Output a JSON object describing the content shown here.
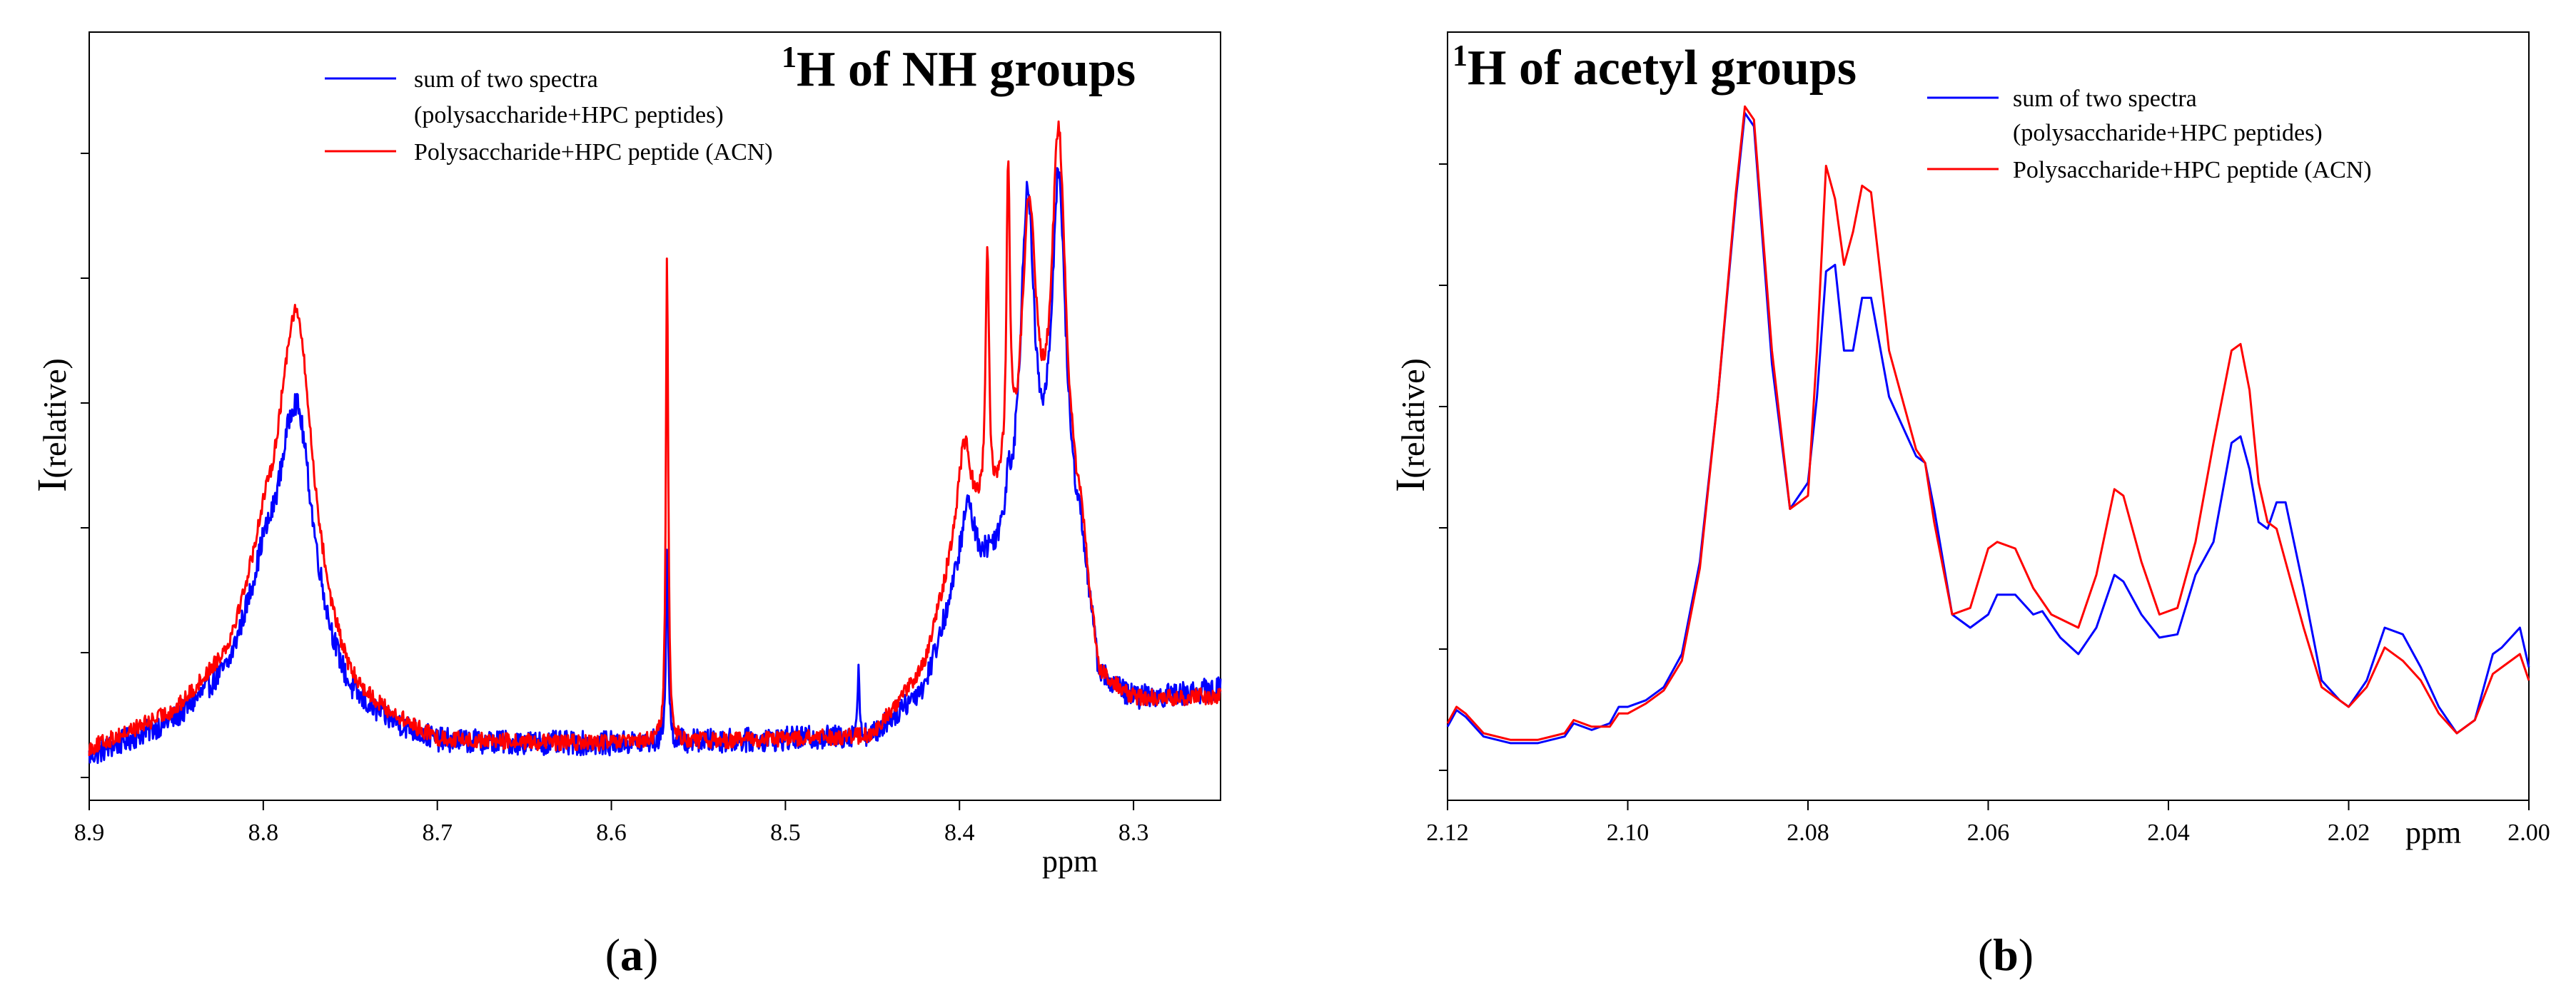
{
  "chart_data": [
    {
      "type": "line",
      "panel_label": "a",
      "title_superscript": "1",
      "title": "H of NH groups",
      "xlabel": "ppm",
      "ylabel_main": "I",
      "ylabel_sub": "(relative)",
      "xlim": [
        8.9,
        8.25
      ],
      "ylim": [
        0,
        1.0
      ],
      "x_ticks": [
        8.9,
        8.8,
        8.7,
        8.6,
        8.5,
        8.4,
        8.3
      ],
      "x_tick_labels": [
        "8.9",
        "8.8",
        "8.7",
        "8.6",
        "8.5",
        "8.4",
        "8.3"
      ],
      "legend": {
        "position": "top-center",
        "entries": [
          {
            "line1": "sum of two spectra",
            "line2": "(polysaccharide+HPC peptides)",
            "color": "#0000ff"
          },
          {
            "line1": "Polysaccharide+HPC peptide (ACN)",
            "line2": "",
            "color": "#ff0000"
          }
        ]
      },
      "series": [
        {
          "name": "sum of two spectra (polysaccharide+HPC peptides)",
          "color": "#0000ff",
          "noise": 0.018,
          "baseline": [
            [
              8.9,
              0.02
            ],
            [
              8.85,
              0.07
            ],
            [
              8.82,
              0.13
            ],
            [
              8.8,
              0.25
            ],
            [
              8.75,
              0.08
            ],
            [
              8.7,
              0.04
            ],
            [
              8.6,
              0.04
            ],
            [
              8.45,
              0.05
            ],
            [
              8.42,
              0.12
            ],
            [
              8.4,
              0.28
            ],
            [
              8.37,
              0.3
            ],
            [
              8.33,
              0.3
            ],
            [
              8.32,
              0.12
            ],
            [
              8.3,
              0.1
            ],
            [
              8.25,
              0.12
            ]
          ],
          "peaks": [
            {
              "x": 8.781,
              "height": 0.36,
              "width": 0.012
            },
            {
              "x": 8.568,
              "height": 0.28,
              "width": 0.0008
            },
            {
              "x": 8.458,
              "height": 0.09,
              "width": 0.0008
            },
            {
              "x": 8.395,
              "height": 0.1,
              "width": 0.004
            },
            {
              "x": 8.372,
              "height": 0.06,
              "width": 0.0015
            },
            {
              "x": 8.361,
              "height": 0.52,
              "width": 0.005
            },
            {
              "x": 8.343,
              "height": 0.55,
              "width": 0.005
            }
          ]
        },
        {
          "name": "Polysaccharide+HPC peptide (ACN)",
          "color": "#ff0000",
          "noise": 0.012,
          "baseline": [
            [
              8.9,
              0.03
            ],
            [
              8.85,
              0.08
            ],
            [
              8.82,
              0.15
            ],
            [
              8.8,
              0.27
            ],
            [
              8.75,
              0.09
            ],
            [
              8.7,
              0.04
            ],
            [
              8.6,
              0.04
            ],
            [
              8.45,
              0.05
            ],
            [
              8.42,
              0.15
            ],
            [
              8.4,
              0.35
            ],
            [
              8.37,
              0.37
            ],
            [
              8.33,
              0.32
            ],
            [
              8.32,
              0.12
            ],
            [
              8.3,
              0.1
            ],
            [
              8.25,
              0.11
            ]
          ],
          "peaks": [
            {
              "x": 8.781,
              "height": 0.48,
              "width": 0.012
            },
            {
              "x": 8.568,
              "height": 0.72,
              "width": 0.0008
            },
            {
              "x": 8.397,
              "height": 0.12,
              "width": 0.004
            },
            {
              "x": 8.384,
              "height": 0.38,
              "width": 0.0012
            },
            {
              "x": 8.372,
              "height": 0.45,
              "width": 0.0012
            },
            {
              "x": 8.36,
              "height": 0.45,
              "width": 0.005
            },
            {
              "x": 8.343,
              "height": 0.58,
              "width": 0.005
            }
          ]
        }
      ]
    },
    {
      "type": "line",
      "panel_label": "b",
      "title_superscript": "1",
      "title": "H of acetyl groups",
      "xlabel": "ppm",
      "ylabel_main": "I",
      "ylabel_sub": "(relative)",
      "xlim": [
        2.12,
        2.0
      ],
      "ylim": [
        0,
        1.0
      ],
      "x_ticks": [
        2.12,
        2.1,
        2.08,
        2.06,
        2.04,
        2.02,
        2.0
      ],
      "x_tick_labels": [
        "2.12",
        "2.10",
        "2.08",
        "2.06",
        "2.04",
        "2.02",
        "2.00"
      ],
      "legend": {
        "position": "top-right",
        "entries": [
          {
            "line1": "sum of two spectra",
            "line2": "(polysaccharide+HPC peptides)",
            "color": "#0000ff"
          },
          {
            "line1": "Polysaccharide+HPC peptide (ACN)",
            "line2": "",
            "color": "#ff0000"
          }
        ]
      },
      "series": [
        {
          "name": "sum of two spectra (polysaccharide+HPC peptides)",
          "color": "#0000ff",
          "points": [
            [
              2.12,
              0.05
            ],
            [
              2.119,
              0.075
            ],
            [
              2.118,
              0.065
            ],
            [
              2.116,
              0.035
            ],
            [
              2.113,
              0.025
            ],
            [
              2.11,
              0.025
            ],
            [
              2.107,
              0.035
            ],
            [
              2.106,
              0.055
            ],
            [
              2.104,
              0.045
            ],
            [
              2.102,
              0.055
            ],
            [
              2.101,
              0.08
            ],
            [
              2.1,
              0.08
            ],
            [
              2.098,
              0.09
            ],
            [
              2.096,
              0.11
            ],
            [
              2.094,
              0.16
            ],
            [
              2.092,
              0.3
            ],
            [
              2.09,
              0.55
            ],
            [
              2.088,
              0.85
            ],
            [
              2.087,
              0.98
            ],
            [
              2.086,
              0.96
            ],
            [
              2.084,
              0.6
            ],
            [
              2.082,
              0.38
            ],
            [
              2.08,
              0.42
            ],
            [
              2.079,
              0.55
            ],
            [
              2.078,
              0.74
            ],
            [
              2.077,
              0.75
            ],
            [
              2.076,
              0.62
            ],
            [
              2.075,
              0.62
            ],
            [
              2.074,
              0.7
            ],
            [
              2.073,
              0.7
            ],
            [
              2.071,
              0.55
            ],
            [
              2.068,
              0.46
            ],
            [
              2.067,
              0.45
            ],
            [
              2.066,
              0.38
            ],
            [
              2.064,
              0.22
            ],
            [
              2.062,
              0.2
            ],
            [
              2.06,
              0.22
            ],
            [
              2.059,
              0.25
            ],
            [
              2.057,
              0.25
            ],
            [
              2.055,
              0.22
            ],
            [
              2.054,
              0.225
            ],
            [
              2.052,
              0.185
            ],
            [
              2.05,
              0.16
            ],
            [
              2.048,
              0.2
            ],
            [
              2.046,
              0.28
            ],
            [
              2.045,
              0.27
            ],
            [
              2.043,
              0.22
            ],
            [
              2.041,
              0.185
            ],
            [
              2.039,
              0.19
            ],
            [
              2.037,
              0.28
            ],
            [
              2.035,
              0.33
            ],
            [
              2.033,
              0.48
            ],
            [
              2.032,
              0.49
            ],
            [
              2.031,
              0.44
            ],
            [
              2.03,
              0.36
            ],
            [
              2.029,
              0.35
            ],
            [
              2.028,
              0.39
            ],
            [
              2.027,
              0.39
            ],
            [
              2.025,
              0.26
            ],
            [
              2.023,
              0.12
            ],
            [
              2.021,
              0.09
            ],
            [
              2.02,
              0.08
            ],
            [
              2.018,
              0.12
            ],
            [
              2.016,
              0.2
            ],
            [
              2.014,
              0.19
            ],
            [
              2.012,
              0.14
            ],
            [
              2.01,
              0.08
            ],
            [
              2.008,
              0.04
            ],
            [
              2.006,
              0.06
            ],
            [
              2.004,
              0.16
            ],
            [
              2.003,
              0.17
            ],
            [
              2.001,
              0.2
            ],
            [
              2.0,
              0.14
            ]
          ]
        },
        {
          "name": "Polysaccharide+HPC peptide (ACN)",
          "color": "#ff0000",
          "points": [
            [
              2.12,
              0.055
            ],
            [
              2.119,
              0.08
            ],
            [
              2.118,
              0.07
            ],
            [
              2.116,
              0.04
            ],
            [
              2.113,
              0.03
            ],
            [
              2.11,
              0.03
            ],
            [
              2.107,
              0.04
            ],
            [
              2.106,
              0.06
            ],
            [
              2.104,
              0.05
            ],
            [
              2.102,
              0.05
            ],
            [
              2.101,
              0.07
            ],
            [
              2.1,
              0.07
            ],
            [
              2.098,
              0.085
            ],
            [
              2.096,
              0.105
            ],
            [
              2.094,
              0.15
            ],
            [
              2.092,
              0.29
            ],
            [
              2.09,
              0.55
            ],
            [
              2.088,
              0.86
            ],
            [
              2.087,
              0.99
            ],
            [
              2.086,
              0.97
            ],
            [
              2.084,
              0.62
            ],
            [
              2.082,
              0.38
            ],
            [
              2.08,
              0.4
            ],
            [
              2.079,
              0.62
            ],
            [
              2.078,
              0.9
            ],
            [
              2.077,
              0.85
            ],
            [
              2.076,
              0.75
            ],
            [
              2.075,
              0.8
            ],
            [
              2.074,
              0.87
            ],
            [
              2.073,
              0.86
            ],
            [
              2.071,
              0.62
            ],
            [
              2.068,
              0.47
            ],
            [
              2.067,
              0.45
            ],
            [
              2.066,
              0.36
            ],
            [
              2.064,
              0.22
            ],
            [
              2.062,
              0.23
            ],
            [
              2.06,
              0.32
            ],
            [
              2.059,
              0.33
            ],
            [
              2.057,
              0.32
            ],
            [
              2.055,
              0.26
            ],
            [
              2.053,
              0.22
            ],
            [
              2.05,
              0.2
            ],
            [
              2.048,
              0.28
            ],
            [
              2.046,
              0.41
            ],
            [
              2.045,
              0.4
            ],
            [
              2.043,
              0.3
            ],
            [
              2.041,
              0.22
            ],
            [
              2.039,
              0.23
            ],
            [
              2.037,
              0.33
            ],
            [
              2.035,
              0.48
            ],
            [
              2.033,
              0.62
            ],
            [
              2.032,
              0.63
            ],
            [
              2.031,
              0.56
            ],
            [
              2.03,
              0.42
            ],
            [
              2.029,
              0.36
            ],
            [
              2.028,
              0.35
            ],
            [
              2.027,
              0.3
            ],
            [
              2.025,
              0.2
            ],
            [
              2.023,
              0.11
            ],
            [
              2.021,
              0.09
            ],
            [
              2.02,
              0.08
            ],
            [
              2.018,
              0.11
            ],
            [
              2.016,
              0.17
            ],
            [
              2.014,
              0.15
            ],
            [
              2.012,
              0.12
            ],
            [
              2.01,
              0.07
            ],
            [
              2.008,
              0.04
            ],
            [
              2.006,
              0.06
            ],
            [
              2.004,
              0.13
            ],
            [
              2.003,
              0.14
            ],
            [
              2.001,
              0.16
            ],
            [
              2.0,
              0.12
            ]
          ]
        }
      ]
    }
  ]
}
